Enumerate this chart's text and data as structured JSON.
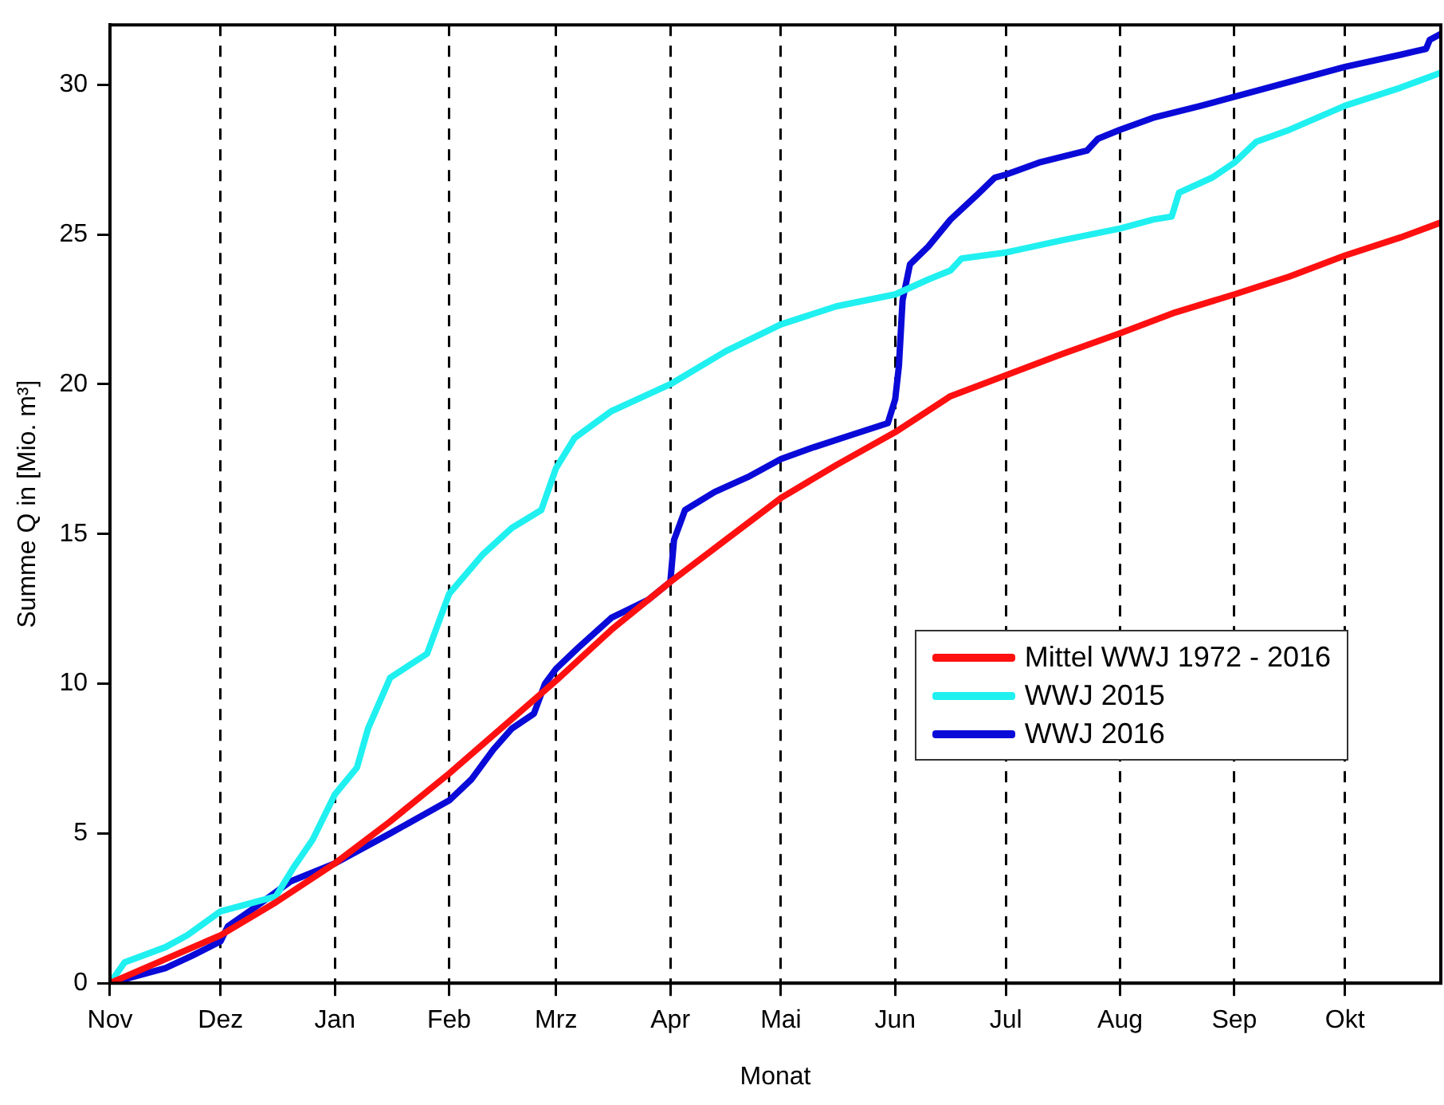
{
  "chart_data": {
    "type": "line",
    "xlabel": "Monat",
    "ylabel": "Summe Q in [Mio. m³]",
    "xlim": [
      "2015-11-01",
      "2016-10-27"
    ],
    "ylim": [
      0,
      32
    ],
    "xticks": [
      {
        "value": "2015-11-01",
        "label": "Nov"
      },
      {
        "value": "2015-12-01",
        "label": "Dez"
      },
      {
        "value": "2016-01-01",
        "label": "Jan"
      },
      {
        "value": "2016-02-01",
        "label": "Feb"
      },
      {
        "value": "2016-03-01",
        "label": "Mrz"
      },
      {
        "value": "2016-04-01",
        "label": "Apr"
      },
      {
        "value": "2016-05-01",
        "label": "Mai"
      },
      {
        "value": "2016-06-01",
        "label": "Jun"
      },
      {
        "value": "2016-07-01",
        "label": "Jul"
      },
      {
        "value": "2016-08-01",
        "label": "Aug"
      },
      {
        "value": "2016-09-01",
        "label": "Sep"
      },
      {
        "value": "2016-10-01",
        "label": "Okt"
      }
    ],
    "yticks": [
      0,
      5,
      10,
      15,
      20,
      25,
      30
    ],
    "grid": "x",
    "legend": "right",
    "marker": "none",
    "line_style": "solid",
    "series": [
      {
        "name": "Mittel WWJ 1972 - 2016",
        "color": "#ff1010",
        "x": [
          "2015-11-01",
          "2015-11-16",
          "2015-12-01",
          "2015-12-16",
          "2016-01-01",
          "2016-01-16",
          "2016-02-01",
          "2016-02-15",
          "2016-03-01",
          "2016-03-16",
          "2016-04-01",
          "2016-04-16",
          "2016-05-01",
          "2016-05-16",
          "2016-06-01",
          "2016-06-16",
          "2016-07-01",
          "2016-07-16",
          "2016-08-01",
          "2016-08-16",
          "2016-09-01",
          "2016-09-16",
          "2016-10-01",
          "2016-10-16",
          "2016-10-27"
        ],
        "values": [
          0,
          0.8,
          1.6,
          2.7,
          4.0,
          5.4,
          7.0,
          8.5,
          10.1,
          11.8,
          13.4,
          14.8,
          16.2,
          17.3,
          18.4,
          19.6,
          20.3,
          21.0,
          21.7,
          22.4,
          23.0,
          23.6,
          24.3,
          24.9,
          25.4
        ]
      },
      {
        "name": "WWJ 2015",
        "color": "#20f0f0",
        "x": [
          "2015-11-01",
          "2015-11-05",
          "2015-11-16",
          "2015-11-22",
          "2015-12-01",
          "2015-12-16",
          "2015-12-21",
          "2015-12-26",
          "2016-01-01",
          "2016-01-07",
          "2016-01-10",
          "2016-01-16",
          "2016-01-26",
          "2016-02-01",
          "2016-02-10",
          "2016-02-18",
          "2016-02-26",
          "2016-03-01",
          "2016-03-06",
          "2016-03-16",
          "2016-04-01",
          "2016-04-16",
          "2016-05-01",
          "2016-05-16",
          "2016-06-01",
          "2016-06-10",
          "2016-06-16",
          "2016-06-19",
          "2016-07-01",
          "2016-07-16",
          "2016-08-01",
          "2016-08-10",
          "2016-08-15",
          "2016-08-17",
          "2016-08-26",
          "2016-09-01",
          "2016-09-07",
          "2016-09-16",
          "2016-10-01",
          "2016-10-16",
          "2016-10-27"
        ],
        "values": [
          0,
          0.7,
          1.2,
          1.6,
          2.4,
          2.9,
          3.9,
          4.8,
          6.3,
          7.2,
          8.5,
          10.2,
          11.0,
          13.0,
          14.3,
          15.2,
          15.8,
          17.2,
          18.2,
          19.1,
          20.0,
          21.1,
          22.0,
          22.6,
          23.0,
          23.5,
          23.8,
          24.2,
          24.4,
          24.8,
          25.2,
          25.5,
          25.6,
          26.4,
          26.9,
          27.4,
          28.1,
          28.5,
          29.3,
          29.9,
          30.4
        ]
      },
      {
        "name": "WWJ 2016",
        "color": "#0a0ad8",
        "x": [
          "2015-11-01",
          "2015-11-16",
          "2015-11-23",
          "2015-12-01",
          "2015-12-03",
          "2015-12-10",
          "2015-12-20",
          "2016-01-01",
          "2016-01-16",
          "2016-02-01",
          "2016-02-07",
          "2016-02-13",
          "2016-02-18",
          "2016-02-24",
          "2016-02-27",
          "2016-03-01",
          "2016-03-07",
          "2016-03-16",
          "2016-03-26",
          "2016-04-01",
          "2016-04-02",
          "2016-04-05",
          "2016-04-13",
          "2016-04-22",
          "2016-05-01",
          "2016-05-10",
          "2016-05-20",
          "2016-05-30",
          "2016-06-01",
          "2016-06-02",
          "2016-06-03",
          "2016-06-05",
          "2016-06-10",
          "2016-06-16",
          "2016-06-23",
          "2016-06-28",
          "2016-07-01",
          "2016-07-10",
          "2016-07-23",
          "2016-07-26",
          "2016-08-01",
          "2016-08-10",
          "2016-08-23",
          "2016-09-01",
          "2016-09-16",
          "2016-10-01",
          "2016-10-16",
          "2016-10-23",
          "2016-10-24",
          "2016-10-27"
        ],
        "values": [
          0,
          0.5,
          0.9,
          1.4,
          1.9,
          2.5,
          3.4,
          4.0,
          5.0,
          6.1,
          6.8,
          7.8,
          8.5,
          9.0,
          10.0,
          10.5,
          11.2,
          12.2,
          12.8,
          13.4,
          14.8,
          15.8,
          16.4,
          16.9,
          17.5,
          17.9,
          18.3,
          18.7,
          19.5,
          20.6,
          22.8,
          24.0,
          24.6,
          25.5,
          26.3,
          26.9,
          27.0,
          27.4,
          27.8,
          28.2,
          28.5,
          28.9,
          29.3,
          29.6,
          30.1,
          30.6,
          31.0,
          31.2,
          31.5,
          31.7
        ]
      }
    ]
  }
}
